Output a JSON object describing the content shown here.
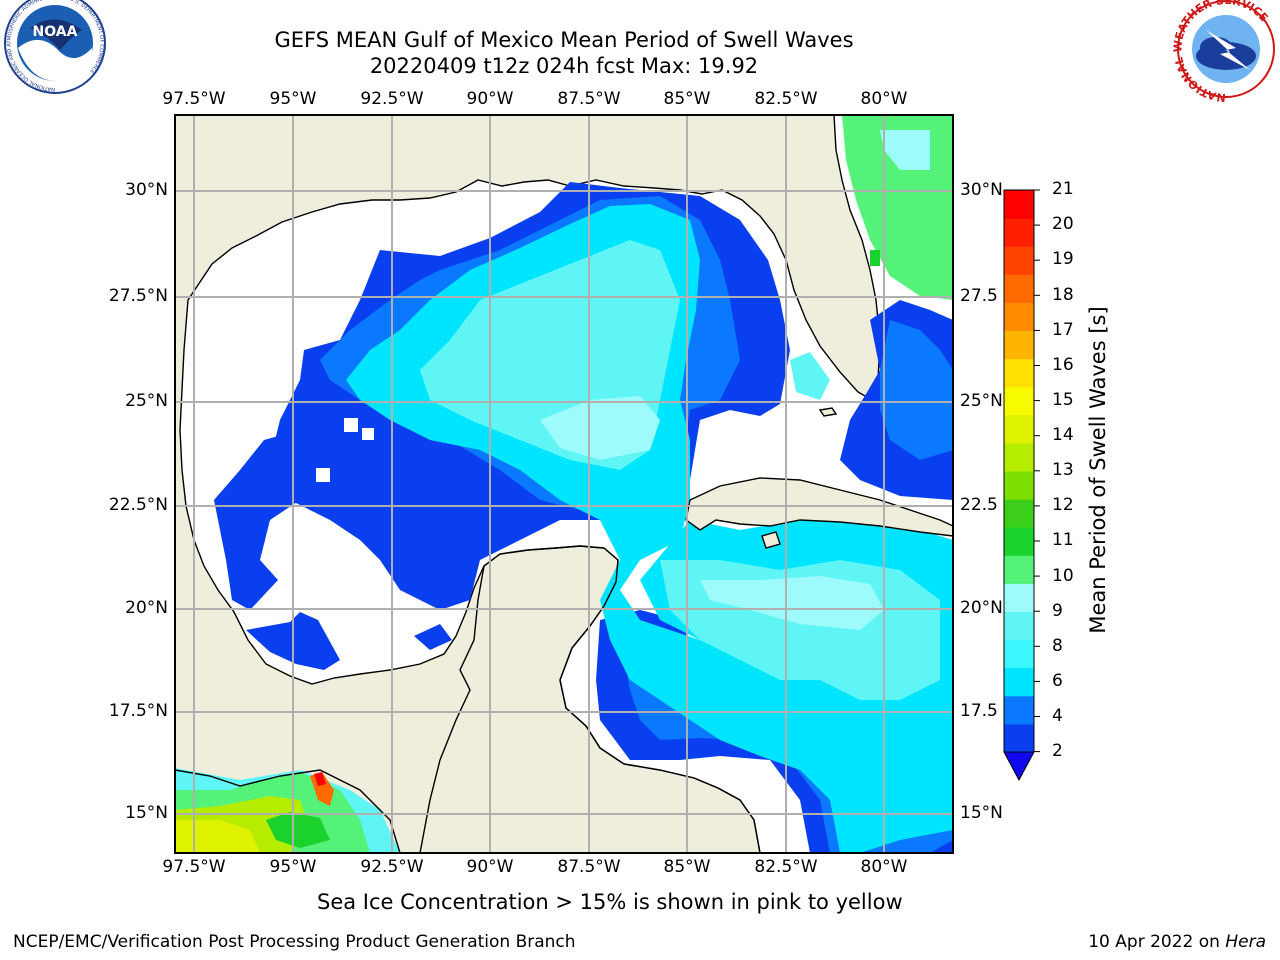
{
  "title": {
    "line1": "GEFS MEAN Gulf of Mexico Mean Period of Swell Waves",
    "line2": "20220409 t12z 024h fcst   Max: 19.92"
  },
  "lon_labels": [
    "97.5°W",
    "95°W",
    "92.5°W",
    "90°W",
    "87.5°W",
    "85°W",
    "82.5°W",
    "80°W"
  ],
  "lat_labels_left": [
    "30°N",
    "27.5°N",
    "25°N",
    "22.5°N",
    "20°N",
    "17.5°N",
    "15°N"
  ],
  "lat_labels_right": [
    "30°N",
    "27.5",
    "25°N",
    "22.5",
    "20°N",
    "17.5",
    "15°N"
  ],
  "colorbar": {
    "label": "Mean Period of Swell Waves [s]",
    "ticks": [
      "21",
      "20",
      "19",
      "18",
      "17",
      "16",
      "15",
      "14",
      "13",
      "12",
      "11",
      "10",
      "9",
      "8",
      "6",
      "4",
      "2"
    ],
    "colors": [
      "#0a3ff0",
      "#0a78ff",
      "#00e5ff",
      "#3df7ff",
      "#5ff5f5",
      "#9dfbfb",
      "#55f27a",
      "#1bd12c",
      "#3ccf1a",
      "#7de000",
      "#b5ec00",
      "#dff300",
      "#f8fa00",
      "#ffe000",
      "#ffb400",
      "#ff8c00",
      "#ff6a00",
      "#ff4400",
      "#ff2000",
      "#ff0000"
    ],
    "extend_color": "#1008f0"
  },
  "land_color": "#efeedd",
  "note": "Sea Ice Concentration > 15% is shown in pink to yellow",
  "footer": {
    "left": "NCEP/EMC/Verification Post Processing Product Generation Branch",
    "right_date": "10 Apr 2022 on ",
    "right_host": "Hera"
  },
  "logos": {
    "noaa_text": "NOAA",
    "noaa_ring": "NATIONAL OCEANIC AND ATMOSPHERIC ADMINISTRATION · U.S. DEPARTMENT OF COMMERCE",
    "nws_ring": "NATIONAL WEATHER SERVICE"
  }
}
